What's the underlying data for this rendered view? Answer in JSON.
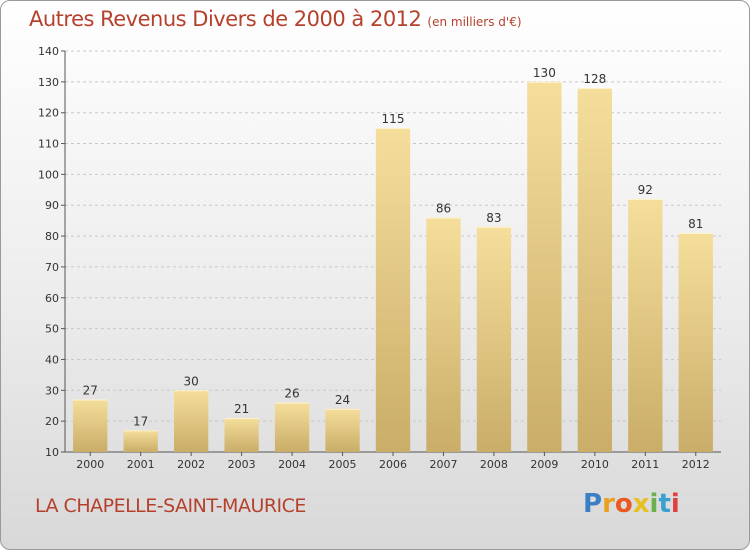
{
  "header": {
    "title": "Autres Revenus Divers de 2000 à 2012",
    "subtitle": "(en milliers d'€)"
  },
  "footer": {
    "commune": "LA CHAPELLE-SAINT-MAURICE",
    "logo_letters": [
      "P",
      "r",
      "o",
      "x",
      "i",
      "t",
      "i"
    ],
    "logo_colors": [
      "#3a7fc4",
      "#e8a020",
      "#e85a20",
      "#e8c020",
      "#6ab04c",
      "#3aa0d0",
      "#e04040"
    ]
  },
  "chart_data": {
    "type": "bar",
    "categories": [
      "2000",
      "2001",
      "2002",
      "2003",
      "2004",
      "2005",
      "2006",
      "2007",
      "2008",
      "2009",
      "2010",
      "2011",
      "2012"
    ],
    "values": [
      27,
      17,
      30,
      21,
      26,
      24,
      115,
      86,
      83,
      130,
      128,
      92,
      81
    ],
    "ylim": [
      10,
      140
    ],
    "yticks": [
      10,
      20,
      30,
      40,
      50,
      60,
      70,
      80,
      90,
      100,
      110,
      120,
      130,
      140
    ],
    "grid": "horizontal dashed",
    "bar_color_top": "#f5de9b",
    "bar_color_bottom": "#c9ad68",
    "title": "Autres Revenus Divers de 2000 à 2012",
    "xlabel": "",
    "ylabel": ""
  }
}
